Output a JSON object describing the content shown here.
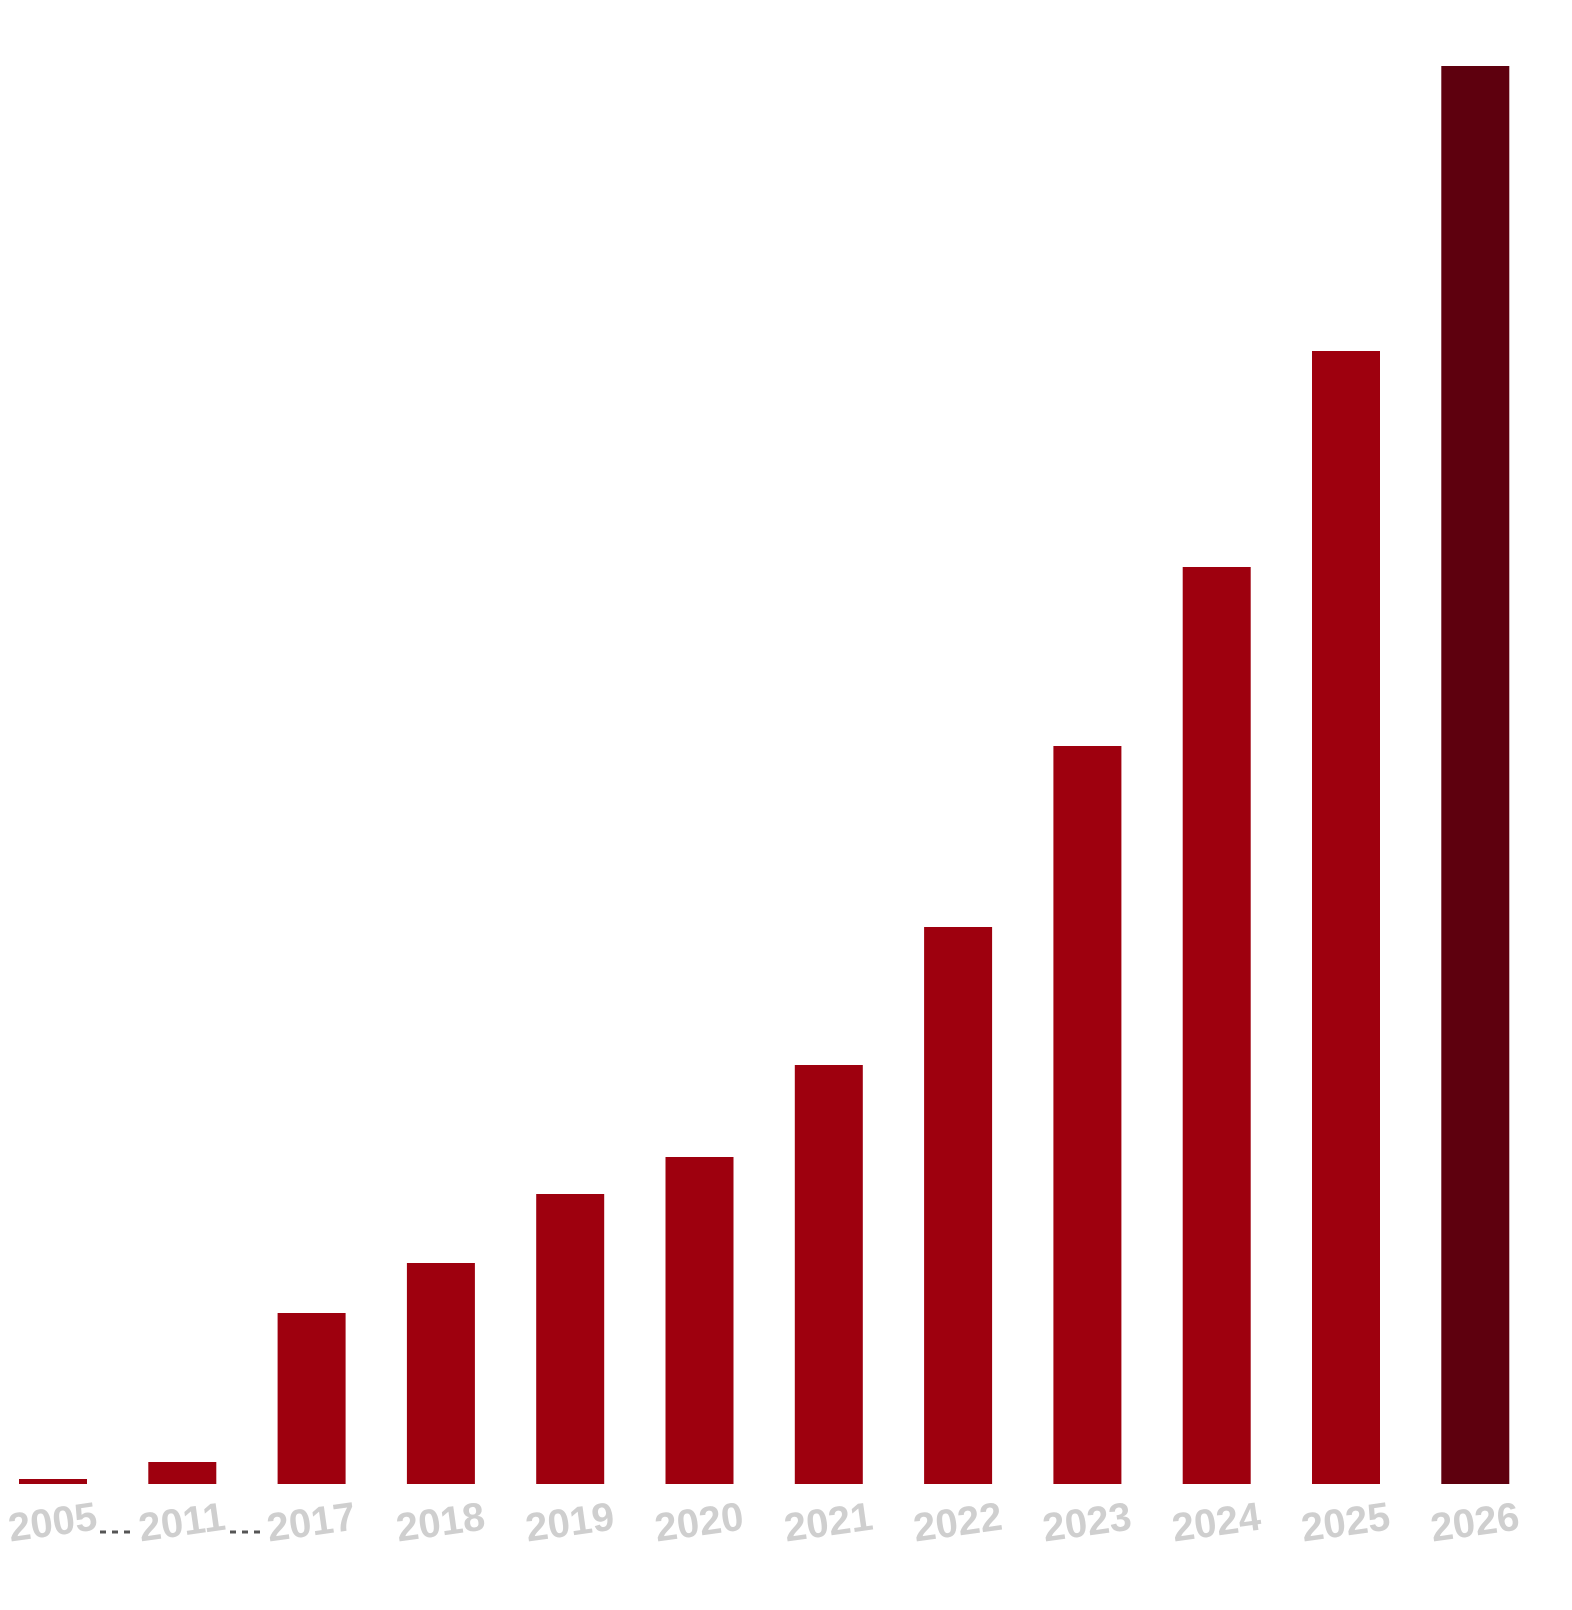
{
  "chart_data": {
    "type": "bar",
    "categories": [
      "2005",
      "2011",
      "2017",
      "2018",
      "2019",
      "2020",
      "2021",
      "2022",
      "2023",
      "2024",
      "2025",
      "2026"
    ],
    "values": [
      5,
      22,
      171,
      221,
      290,
      327,
      419,
      557,
      738,
      917,
      1133,
      1418
    ],
    "colors": [
      "#9e000e",
      "#9e000e",
      "#9e000e",
      "#9e000e",
      "#9e000e",
      "#9e000e",
      "#9e000e",
      "#9e000e",
      "#9e000e",
      "#9e000e",
      "#9e000e",
      "#5e000e"
    ]
  }
}
